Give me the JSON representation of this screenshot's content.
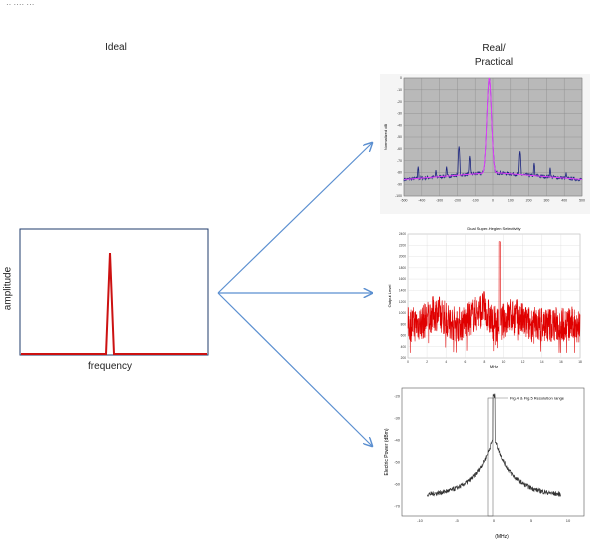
{
  "corner_text": "·· ···· ···",
  "headers": {
    "ideal": "Ideal",
    "real_line1": "Real/",
    "real_line2": "Practical"
  },
  "ideal_plot": {
    "ylabel": "amplitude",
    "xlabel": "frequency",
    "color": "#cc1111",
    "frame_color": "#1f3b6b"
  },
  "arrows": {
    "color": "#5b8fd0"
  },
  "chart1": {
    "ylabel": "Normalized dB",
    "yticks": [
      "0",
      "-10",
      "-20",
      "-30",
      "-40",
      "-50",
      "-60",
      "-70",
      "-80",
      "-90",
      "-100"
    ],
    "xticks": [
      "-500",
      "-400",
      "-300",
      "-200",
      "-100",
      "0",
      "100",
      "200",
      "300",
      "400",
      "500"
    ],
    "colors": {
      "plot_bg": "#b9b9b9",
      "trace1": "#1a237e",
      "trace2": "#e040fb"
    }
  },
  "chart2": {
    "title": "Dual Super-Heglen Selectivity",
    "ylabel": "Output Level",
    "xlabel": "MHz",
    "yticks": [
      "2400",
      "2200",
      "2000",
      "1800",
      "1600",
      "1400",
      "1200",
      "1000",
      "800",
      "600",
      "400",
      "200"
    ],
    "xticks": [
      "0",
      "2",
      "4",
      "6",
      "8",
      "10",
      "12",
      "14",
      "16",
      "18"
    ],
    "colors": {
      "trace": "#e00000",
      "grid": "#cccccc"
    }
  },
  "chart3": {
    "legend": "Fig.4 & Fig.5 Resolution range",
    "ylabel": "Electric Power (dBm)",
    "xlabel": "(MHz)",
    "yticks": [
      "-20",
      "-30",
      "-40",
      "-50",
      "-60",
      "-70"
    ],
    "xticks": [
      "-10",
      "-5",
      "0",
      "5",
      "10"
    ],
    "colors": {
      "trace": "#333333"
    }
  }
}
